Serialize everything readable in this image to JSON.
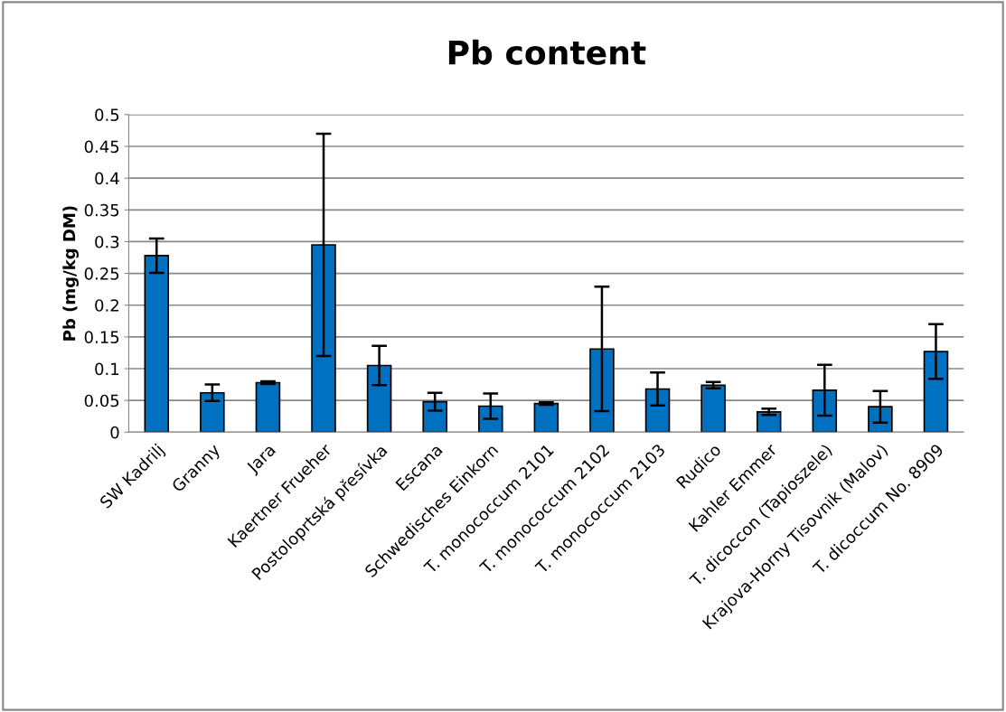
{
  "chart_data": {
    "type": "bar",
    "title": "Pb content",
    "ylabel": "Pb (mg/kg DM)",
    "categories": [
      "SW Kadrilj",
      "Granny",
      "Jara",
      "Kaertner Frueher",
      "Postoloprtská přesívka",
      "Escana",
      "Schwedisches Einkorn",
      "T. monococcum 2101",
      "T. monococcum 2102",
      "T. monococcum 2103",
      "Rudico",
      "Kahler Emmer",
      "T. dicoccon (Tapioszele)",
      "Krajova-Horny Tisovnik (Malov)",
      "T. dicoccum No. 8909"
    ],
    "values": [
      0.278,
      0.062,
      0.078,
      0.295,
      0.105,
      0.048,
      0.041,
      0.045,
      0.131,
      0.068,
      0.074,
      0.032,
      0.066,
      0.04,
      0.127
    ],
    "errors": [
      0.027,
      0.013,
      0.002,
      0.175,
      0.031,
      0.014,
      0.02,
      0.002,
      0.098,
      0.026,
      0.005,
      0.005,
      0.04,
      0.025,
      0.043
    ],
    "color": "#0070c0",
    "ylim": [
      0,
      0.5
    ],
    "yticks": [
      0,
      0.05,
      0.1,
      0.15,
      0.2,
      0.25,
      0.3,
      0.35,
      0.4,
      0.45,
      0.5
    ],
    "grid": "y"
  }
}
